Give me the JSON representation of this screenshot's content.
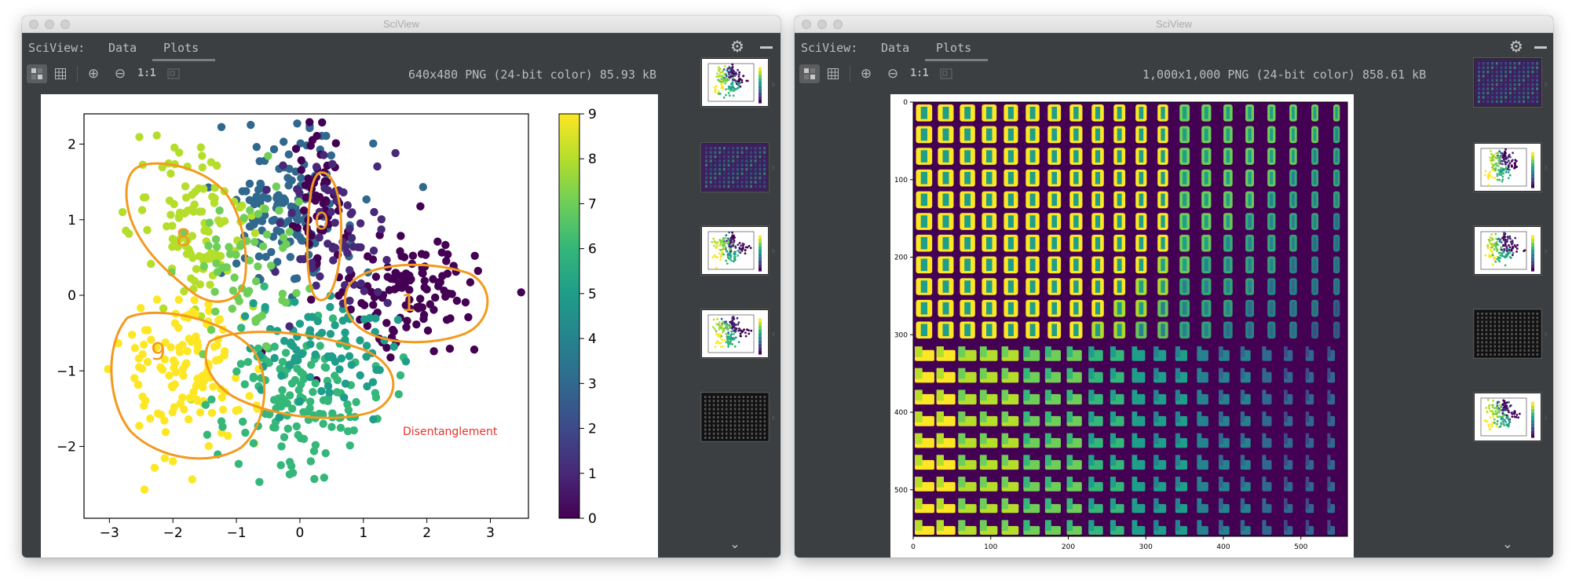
{
  "windows": [
    {
      "title": "SciView",
      "brand": "SciView:",
      "tabs": [
        {
          "label": "Data"
        },
        {
          "label": "Plots"
        }
      ],
      "active_tab": "Plots",
      "image_info": "640x480 PNG (24-bit color) 85.93 kB",
      "plot": {
        "annotation": "Disentanglement",
        "colorbar_ticks": [
          "0",
          "1",
          "2",
          "3",
          "4",
          "5",
          "6",
          "7",
          "8",
          "9"
        ],
        "x_ticks": [
          "−3",
          "−2",
          "−1",
          "0",
          "1",
          "2",
          "3"
        ],
        "y_ticks": [
          "2",
          "1",
          "0",
          "−1",
          "−2"
        ],
        "handwritten_labels": [
          "8",
          "0",
          "1",
          "9"
        ],
        "colors": {
          "outline": "#f39a1e",
          "annotation": "#e8332a"
        }
      }
    },
    {
      "title": "SciView",
      "brand": "SciView:",
      "tabs": [
        {
          "label": "Data"
        },
        {
          "label": "Plots"
        }
      ],
      "active_tab": "Plots",
      "image_info": "1,000x1,000 PNG (24-bit color) 858.61 kB",
      "plot": {
        "x_ticks": [
          "0",
          "100",
          "200",
          "300",
          "400",
          "500"
        ],
        "y_ticks": [
          "0",
          "100",
          "200",
          "300",
          "400",
          "500"
        ]
      }
    }
  ],
  "toolbar": {
    "icons": [
      "checker-icon",
      "grid-icon",
      "zoom-in-icon",
      "zoom-out-icon",
      "actual-size-icon",
      "fit-icon"
    ],
    "one_to_one_label": "1:1"
  },
  "colors": {
    "window_bg": "#3c3f41",
    "viridis_low": "#440154",
    "viridis_mid": "#21908d",
    "viridis_high": "#fde725"
  }
}
